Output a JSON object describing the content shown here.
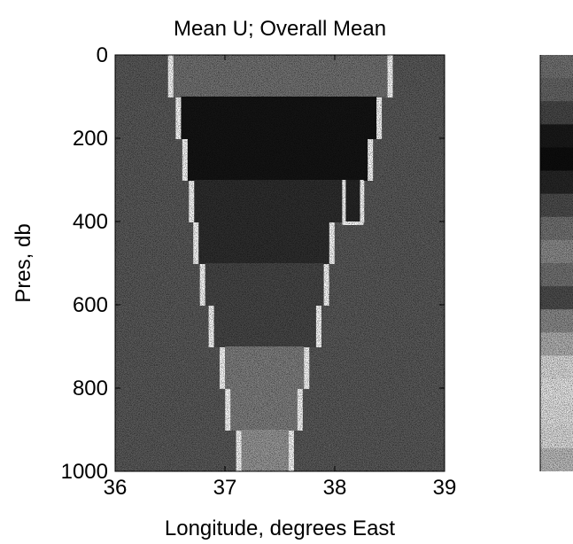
{
  "chart_data": {
    "type": "heatmap",
    "title": "Mean U; Overall Mean",
    "xlabel": "Longitude, degrees East",
    "ylabel": "Pres, db",
    "xlim": [
      36,
      39
    ],
    "ylim": [
      1000,
      0
    ],
    "x_ticks": [
      36,
      37,
      38,
      39
    ],
    "y_ticks": [
      0,
      200,
      400,
      600,
      800,
      1000
    ],
    "y_reversed": true,
    "colorbar": true,
    "colormap": "grayscale (stippled)",
    "background_color": "#5a5a5a",
    "section": {
      "left_wall": [
        {
          "y": 0,
          "x": 36.53
        },
        {
          "y": 100,
          "x": 36.6
        },
        {
          "y": 200,
          "x": 36.66
        },
        {
          "y": 300,
          "x": 36.72
        },
        {
          "y": 400,
          "x": 36.76
        },
        {
          "y": 500,
          "x": 36.82
        },
        {
          "y": 600,
          "x": 36.9
        },
        {
          "y": 700,
          "x": 37.0
        },
        {
          "y": 800,
          "x": 37.05
        },
        {
          "y": 900,
          "x": 37.15
        },
        {
          "y": 1000,
          "x": 37.28
        }
      ],
      "right_wall": [
        {
          "y": 0,
          "x": 38.48
        },
        {
          "y": 100,
          "x": 38.38
        },
        {
          "y": 200,
          "x": 38.3
        },
        {
          "y": 300,
          "x": 38.22
        },
        {
          "y": 400,
          "x": 37.95
        },
        {
          "y": 500,
          "x": 37.9
        },
        {
          "y": 600,
          "x": 37.83
        },
        {
          "y": 700,
          "x": 37.72
        },
        {
          "y": 800,
          "x": 37.66
        },
        {
          "y": 900,
          "x": 37.58
        },
        {
          "y": 1000,
          "x": 37.5
        }
      ],
      "notch": {
        "x_left": 38.1,
        "x_right": 38.23,
        "y_top": 300,
        "y_bottom": 400
      },
      "levels": [
        {
          "y_top": 0,
          "y_bottom": 100,
          "value": 0.55
        },
        {
          "y_top": 100,
          "y_bottom": 300,
          "value": 0.92
        },
        {
          "y_top": 300,
          "y_bottom": 500,
          "value": 0.82
        },
        {
          "y_top": 500,
          "y_bottom": 700,
          "value": 0.72
        },
        {
          "y_top": 700,
          "y_bottom": 900,
          "value": 0.5
        },
        {
          "y_top": 900,
          "y_bottom": 1000,
          "value": 0.4
        }
      ]
    },
    "colorbar_levels": [
      0.55,
      0.6,
      0.72,
      0.9,
      0.95,
      0.85,
      0.7,
      0.55,
      0.45,
      0.55,
      0.7,
      0.45,
      0.3,
      0.12,
      0.08,
      0.1,
      0.12,
      0.25
    ]
  }
}
